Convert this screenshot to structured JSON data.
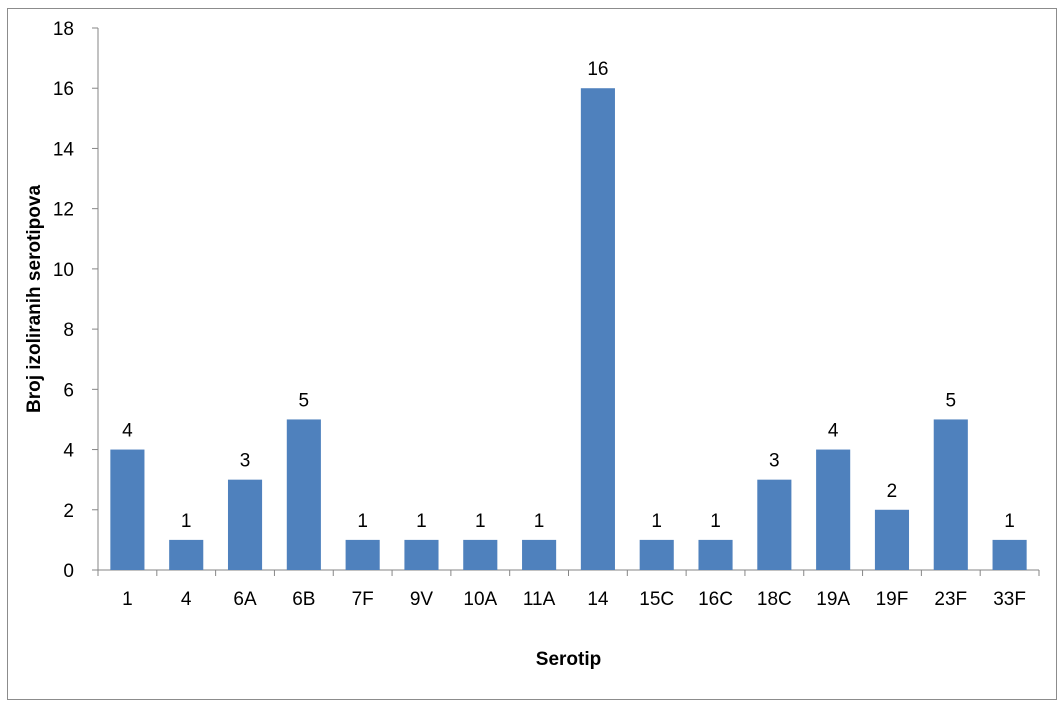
{
  "chart_data": {
    "type": "bar",
    "title": "",
    "xlabel": "Serotip",
    "ylabel": "Broj izoliranih serotipova",
    "categories": [
      "1",
      "4",
      "6A",
      "6B",
      "7F",
      "9V",
      "10A",
      "11A",
      "14",
      "15C",
      "16C",
      "18C",
      "19A",
      "19F",
      "23F",
      "33F"
    ],
    "values": [
      4,
      1,
      3,
      5,
      1,
      1,
      1,
      1,
      16,
      1,
      1,
      3,
      4,
      2,
      5,
      1
    ],
    "ylim": [
      0,
      18
    ],
    "yticks": [
      "0",
      "2",
      "4",
      "6",
      "8",
      "10",
      "12",
      "14",
      "16",
      "18"
    ],
    "ytick_values": [
      0,
      2,
      4,
      6,
      8,
      10,
      12,
      14,
      16,
      18
    ],
    "grid": false,
    "legend": "none",
    "bar_color": "#4F81BD",
    "data_labels": true
  }
}
